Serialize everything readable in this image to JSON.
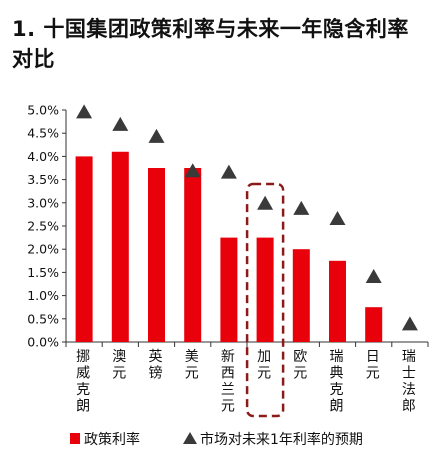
{
  "chart_data": {
    "type": "bar",
    "title": "1. 十国集团政策利率与未来一年隐含利率对比",
    "categories": [
      "挪威克朗",
      "澳元",
      "英镑",
      "美元",
      "新西兰元",
      "加元",
      "欧元",
      "瑞典克朗",
      "日元",
      "瑞士法郎"
    ],
    "series": [
      {
        "name": "政策利率",
        "mark": "bar",
        "color": "#e8000b",
        "values": [
          4.0,
          4.1,
          3.75,
          3.75,
          2.25,
          2.25,
          2.0,
          1.75,
          0.75,
          0.0
        ]
      },
      {
        "name": "市场对未来1年利率的预期",
        "mark": "triangle",
        "color": "#3a3a3a",
        "values": [
          4.95,
          4.68,
          4.42,
          3.68,
          3.65,
          2.98,
          2.87,
          2.65,
          1.4,
          0.38
        ]
      }
    ],
    "yticks": [
      "0.0%",
      "0.5%",
      "1.0%",
      "1.5%",
      "2.0%",
      "2.5%",
      "3.0%",
      "3.5%",
      "4.0%",
      "4.5%",
      "5.0%"
    ],
    "ylim": [
      0,
      5.0
    ],
    "highlight_category": "加元",
    "highlight_color": "#8b1a1a",
    "legend_position": "bottom"
  }
}
